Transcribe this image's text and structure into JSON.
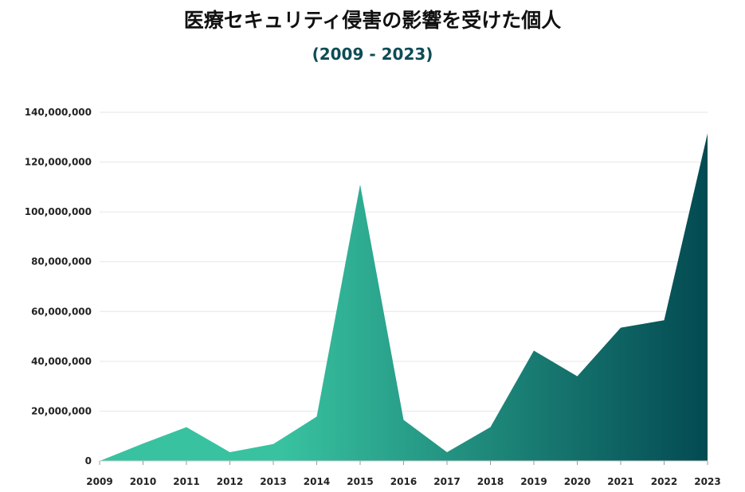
{
  "colors": {
    "gradient_start": "#38c2a0",
    "gradient_end": "#034a52",
    "subtitle": "#0d4c55",
    "grid": "#e6e6e6"
  },
  "chart_data": {
    "type": "area",
    "title": "医療セキュリティ侵害の影響を受けた個人",
    "subtitle": "(2009 - 2023)",
    "xlabel": "",
    "ylabel": "",
    "x": [
      "2009",
      "2010",
      "2011",
      "2012",
      "2013",
      "2014",
      "2015",
      "2016",
      "2017",
      "2018",
      "2019",
      "2020",
      "2021",
      "2022",
      "2023"
    ],
    "values": [
      0,
      7000000,
      13600000,
      3500000,
      6800000,
      17800000,
      111000000,
      16500000,
      3500000,
      13600000,
      44300000,
      34000000,
      53500000,
      56500000,
      131500000
    ],
    "ylim": [
      0,
      140000000
    ],
    "yticks": [
      0,
      20000000,
      40000000,
      60000000,
      80000000,
      100000000,
      120000000,
      140000000
    ],
    "ytick_labels": [
      "0",
      "20,000,000",
      "40,000,000",
      "60,000,000",
      "80,000,000",
      "100,000,000",
      "120,000,000",
      "140,000,000"
    ],
    "grid": true,
    "legend": "none"
  }
}
